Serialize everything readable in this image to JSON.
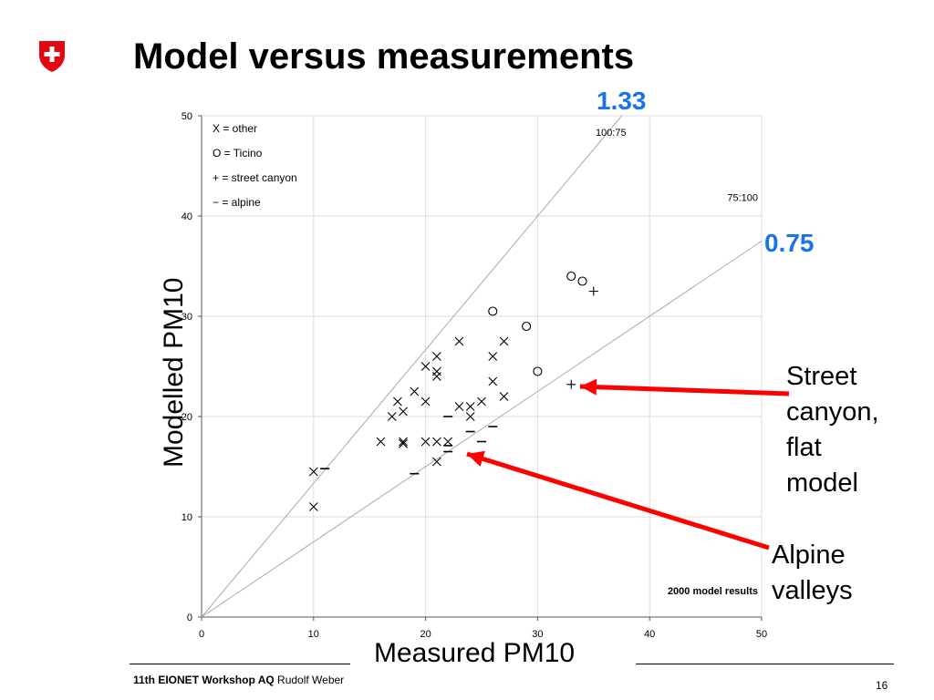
{
  "page": {
    "title": "Model versus measurements",
    "ratio_high_label": "1.33",
    "ratio_low_label": "0.75",
    "callout_street": [
      "Street",
      "canyon,",
      "flat",
      "model"
    ],
    "callout_alpine": [
      "Alpine",
      "valleys"
    ],
    "footer_bold": "11th EIONET Workshop AQ",
    "footer_author": "Rudolf Weber",
    "page_number": "16",
    "colors": {
      "logo": "#e30613",
      "highlight": "#1a73e8",
      "arrow": "#ff0000"
    }
  },
  "chart_data": {
    "type": "scatter",
    "xlabel": "Measured PM10",
    "ylabel": "Modelled PM10",
    "xlim": [
      0,
      50
    ],
    "ylim": [
      0,
      50
    ],
    "xticks": [
      "0",
      "10",
      "20",
      "30",
      "40",
      "50"
    ],
    "yticks": [
      "0",
      "10",
      "20",
      "30",
      "40",
      "50"
    ],
    "grid": true,
    "legend": [
      "X = other",
      "O = Ticino",
      "+ = street canyon",
      "− = alpine"
    ],
    "annotation": "2000 model results",
    "reference_lines": [
      {
        "label": "100:75",
        "slope": 1.333
      },
      {
        "label": "75:100",
        "slope": 0.75
      }
    ],
    "series": [
      {
        "name": "other",
        "marker": "x",
        "points": [
          [
            10,
            14.5
          ],
          [
            10,
            11
          ],
          [
            16,
            17.5
          ],
          [
            17,
            20
          ],
          [
            17.5,
            21.5
          ],
          [
            18,
            20.5
          ],
          [
            18,
            17.5
          ],
          [
            18,
            17.3
          ],
          [
            19,
            22.5
          ],
          [
            20,
            25
          ],
          [
            20,
            17.5
          ],
          [
            20,
            21.5
          ],
          [
            21,
            26
          ],
          [
            21,
            24
          ],
          [
            21,
            24.5
          ],
          [
            21,
            17.5
          ],
          [
            21,
            15.5
          ],
          [
            22,
            17.5
          ],
          [
            23,
            27.5
          ],
          [
            23,
            21
          ],
          [
            24,
            20
          ],
          [
            24,
            21
          ],
          [
            25,
            21.5
          ],
          [
            26,
            26
          ],
          [
            26,
            23.5
          ],
          [
            27,
            27.5
          ],
          [
            27,
            22
          ]
        ]
      },
      {
        "name": "Ticino",
        "marker": "o",
        "points": [
          [
            26,
            30.5
          ],
          [
            29,
            29
          ],
          [
            30,
            24.5
          ],
          [
            33,
            34
          ],
          [
            34,
            33.5
          ]
        ]
      },
      {
        "name": "street canyon",
        "marker": "+",
        "points": [
          [
            35,
            32.5
          ],
          [
            33,
            23.2
          ]
        ]
      },
      {
        "name": "alpine",
        "marker": "-",
        "points": [
          [
            11,
            14.8
          ],
          [
            19,
            14.3
          ],
          [
            22,
            16.5
          ],
          [
            22,
            17.1
          ],
          [
            22,
            20
          ],
          [
            24,
            18.5
          ],
          [
            25,
            17.5
          ],
          [
            26,
            19
          ]
        ]
      }
    ]
  }
}
